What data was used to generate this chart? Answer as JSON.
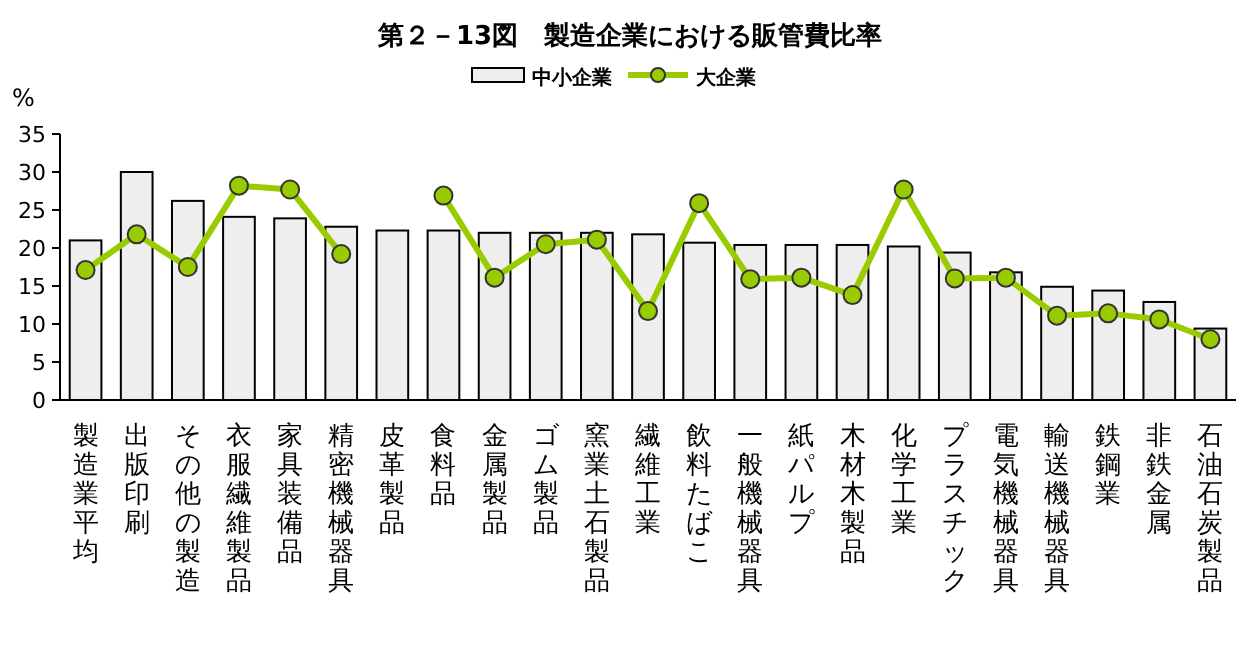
{
  "chart_data": {
    "type": "bar",
    "title": "第２－13図　製造企業における販管費比率",
    "ylabel": "%",
    "categories": [
      "製造業平均",
      "出版印刷",
      "その他の製造",
      "衣服繊維製品",
      "家具装備品",
      "精密機械器具",
      "皮革製品",
      "食料品",
      "金属製品",
      "ゴム製品",
      "窯業土石製品",
      "繊維工業",
      "飲料たばこ",
      "一般機械器具",
      "紙パルプ",
      "木材木製品",
      "化学工業",
      "プラスチック",
      "電気機械器具",
      "輸送機械器具",
      "鉄鋼業",
      "非鉄金属",
      "石油石炭製品"
    ],
    "series": [
      {
        "name": "中小企業",
        "color": "#eeeeee",
        "values": [
          21.0,
          30.0,
          26.2,
          24.1,
          23.9,
          22.8,
          22.3,
          22.3,
          22.0,
          22.0,
          22.0,
          21.8,
          20.7,
          20.4,
          20.4,
          20.4,
          20.2,
          19.4,
          16.8,
          14.9,
          14.4,
          12.9,
          9.4
        ]
      },
      {
        "name": "大企業",
        "type": "line",
        "color": "#99cc00",
        "marker": "circle",
        "values": [
          17.1,
          21.8,
          17.5,
          28.2,
          27.7,
          19.2,
          null,
          26.9,
          16.1,
          20.5,
          21.1,
          11.7,
          25.9,
          15.9,
          16.1,
          13.8,
          27.7,
          16.0,
          16.1,
          11.1,
          11.4,
          10.6,
          8.0
        ]
      }
    ],
    "ylim": [
      0,
      35
    ],
    "yticks": [
      0,
      5,
      10,
      15,
      20,
      25,
      30,
      35
    ],
    "grid": false,
    "legend": "top"
  }
}
